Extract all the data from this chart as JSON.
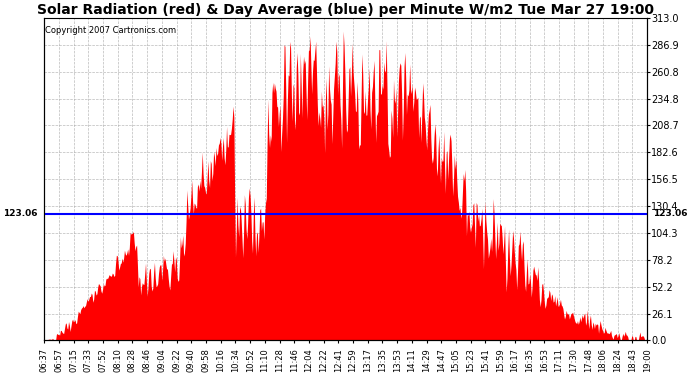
{
  "title": "Solar Radiation (red) & Day Average (blue) per Minute W/m2 Tue Mar 27 19:00",
  "copyright": "Copyright 2007 Cartronics.com",
  "y_max": 313.0,
  "y_min": 0.0,
  "y_ticks": [
    0.0,
    26.1,
    52.2,
    78.2,
    104.3,
    130.4,
    156.5,
    182.6,
    208.7,
    234.8,
    260.8,
    286.9,
    313.0
  ],
  "avg_value": 123.06,
  "bar_color": "#FF0000",
  "avg_line_color": "#0000FF",
  "background_color": "#FFFFFF",
  "grid_color": "#AAAAAA",
  "title_fontsize": 10,
  "x_labels": [
    "06:37",
    "06:57",
    "07:15",
    "07:33",
    "07:52",
    "08:10",
    "08:28",
    "08:46",
    "09:04",
    "09:22",
    "09:40",
    "09:58",
    "10:16",
    "10:34",
    "10:52",
    "11:10",
    "11:28",
    "11:46",
    "12:04",
    "12:22",
    "12:41",
    "12:59",
    "13:17",
    "13:35",
    "13:53",
    "14:11",
    "14:29",
    "14:47",
    "15:05",
    "15:23",
    "15:41",
    "15:59",
    "16:17",
    "16:35",
    "16:53",
    "17:11",
    "17:30",
    "17:48",
    "18:06",
    "18:24",
    "18:43",
    "19:00"
  ]
}
